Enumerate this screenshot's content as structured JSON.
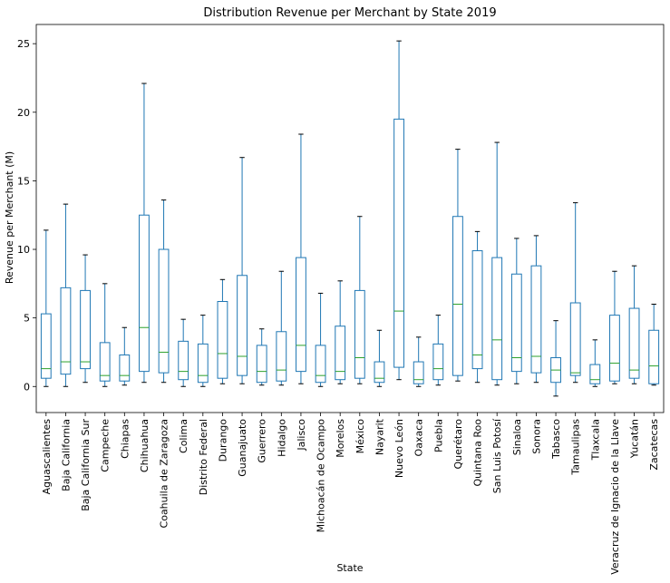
{
  "chart_data": {
    "type": "box",
    "title": "Distribution Revenue per Merchant by State 2019",
    "xlabel": "State",
    "ylabel": "Revenue per Merchant (M)",
    "ylim": [
      -1.9,
      26.4
    ],
    "yticks": [
      0,
      5,
      10,
      15,
      20,
      25
    ],
    "grid": false,
    "box_color": "#1f77b4",
    "median_color": "#2ca02c",
    "categories": [
      "Aguascalientes",
      "Baja California",
      "Baja California Sur",
      "Campeche",
      "Chiapas",
      "Chihuahua",
      "Coahuila de Zaragoza",
      "Colima",
      "Distrito Federal",
      "Durango",
      "Guanajuato",
      "Guerrero",
      "Hidalgo",
      "Jalisco",
      "Michoacán de Ocampo",
      "Morelos",
      "México",
      "Nayarit",
      "Nuevo León",
      "Oaxaca",
      "Puebla",
      "Querétaro",
      "Quintana Roo",
      "San Luis Potosí",
      "Sinaloa",
      "Sonora",
      "Tabasco",
      "Tamaulipas",
      "Tlaxcala",
      "Veracruz de Ignacio de la Llave",
      "Yucatán",
      "Zacatecas"
    ],
    "boxes": [
      {
        "whislo": 0.0,
        "q1": 0.6,
        "med": 1.3,
        "q3": 5.3,
        "whishi": 11.4
      },
      {
        "whislo": 0.0,
        "q1": 0.9,
        "med": 1.8,
        "q3": 7.2,
        "whishi": 13.3
      },
      {
        "whislo": 0.3,
        "q1": 1.3,
        "med": 1.8,
        "q3": 7.0,
        "whishi": 9.6
      },
      {
        "whislo": 0.0,
        "q1": 0.4,
        "med": 0.8,
        "q3": 3.2,
        "whishi": 7.5
      },
      {
        "whislo": 0.1,
        "q1": 0.4,
        "med": 0.8,
        "q3": 2.3,
        "whishi": 4.3
      },
      {
        "whislo": 0.3,
        "q1": 1.1,
        "med": 4.3,
        "q3": 12.5,
        "whishi": 22.1
      },
      {
        "whislo": 0.3,
        "q1": 1.0,
        "med": 2.5,
        "q3": 10.0,
        "whishi": 13.6
      },
      {
        "whislo": 0.0,
        "q1": 0.5,
        "med": 1.1,
        "q3": 3.3,
        "whishi": 4.9
      },
      {
        "whislo": 0.0,
        "q1": 0.3,
        "med": 0.8,
        "q3": 3.1,
        "whishi": 5.2
      },
      {
        "whislo": 0.2,
        "q1": 0.6,
        "med": 2.4,
        "q3": 6.2,
        "whishi": 7.8
      },
      {
        "whislo": 0.2,
        "q1": 0.8,
        "med": 2.2,
        "q3": 8.1,
        "whishi": 16.7
      },
      {
        "whislo": 0.1,
        "q1": 0.3,
        "med": 1.1,
        "q3": 3.0,
        "whishi": 4.2
      },
      {
        "whislo": 0.1,
        "q1": 0.4,
        "med": 1.2,
        "q3": 4.0,
        "whishi": 8.4
      },
      {
        "whislo": 0.2,
        "q1": 1.1,
        "med": 3.0,
        "q3": 9.4,
        "whishi": 18.4
      },
      {
        "whislo": 0.0,
        "q1": 0.3,
        "med": 0.8,
        "q3": 3.0,
        "whishi": 6.8
      },
      {
        "whislo": 0.2,
        "q1": 0.5,
        "med": 1.1,
        "q3": 4.4,
        "whishi": 7.7
      },
      {
        "whislo": 0.2,
        "q1": 0.6,
        "med": 2.1,
        "q3": 7.0,
        "whishi": 12.4
      },
      {
        "whislo": 0.0,
        "q1": 0.3,
        "med": 0.6,
        "q3": 1.8,
        "whishi": 4.1
      },
      {
        "whislo": 0.5,
        "q1": 1.4,
        "med": 5.5,
        "q3": 19.5,
        "whishi": 25.2
      },
      {
        "whislo": 0.0,
        "q1": 0.2,
        "med": 0.5,
        "q3": 1.8,
        "whishi": 3.6
      },
      {
        "whislo": 0.1,
        "q1": 0.5,
        "med": 1.3,
        "q3": 3.1,
        "whishi": 5.2
      },
      {
        "whislo": 0.4,
        "q1": 0.8,
        "med": 6.0,
        "q3": 12.4,
        "whishi": 17.3
      },
      {
        "whislo": 0.3,
        "q1": 1.3,
        "med": 2.3,
        "q3": 9.9,
        "whishi": 11.3
      },
      {
        "whislo": 0.1,
        "q1": 0.5,
        "med": 3.4,
        "q3": 9.4,
        "whishi": 17.8
      },
      {
        "whislo": 0.2,
        "q1": 1.1,
        "med": 2.1,
        "q3": 8.2,
        "whishi": 10.8
      },
      {
        "whislo": 0.3,
        "q1": 1.0,
        "med": 2.2,
        "q3": 8.8,
        "whishi": 11.0
      },
      {
        "whislo": -0.7,
        "q1": 0.3,
        "med": 1.2,
        "q3": 2.1,
        "whishi": 4.8
      },
      {
        "whislo": 0.3,
        "q1": 0.8,
        "med": 1.0,
        "q3": 6.1,
        "whishi": 13.4
      },
      {
        "whislo": 0.0,
        "q1": 0.2,
        "med": 0.5,
        "q3": 1.6,
        "whishi": 3.4
      },
      {
        "whislo": 0.2,
        "q1": 0.4,
        "med": 1.7,
        "q3": 5.2,
        "whishi": 8.4
      },
      {
        "whislo": 0.2,
        "q1": 0.6,
        "med": 1.2,
        "q3": 5.7,
        "whishi": 8.8
      },
      {
        "whislo": 0.1,
        "q1": 0.2,
        "med": 1.5,
        "q3": 4.1,
        "whishi": 6.0
      }
    ]
  }
}
